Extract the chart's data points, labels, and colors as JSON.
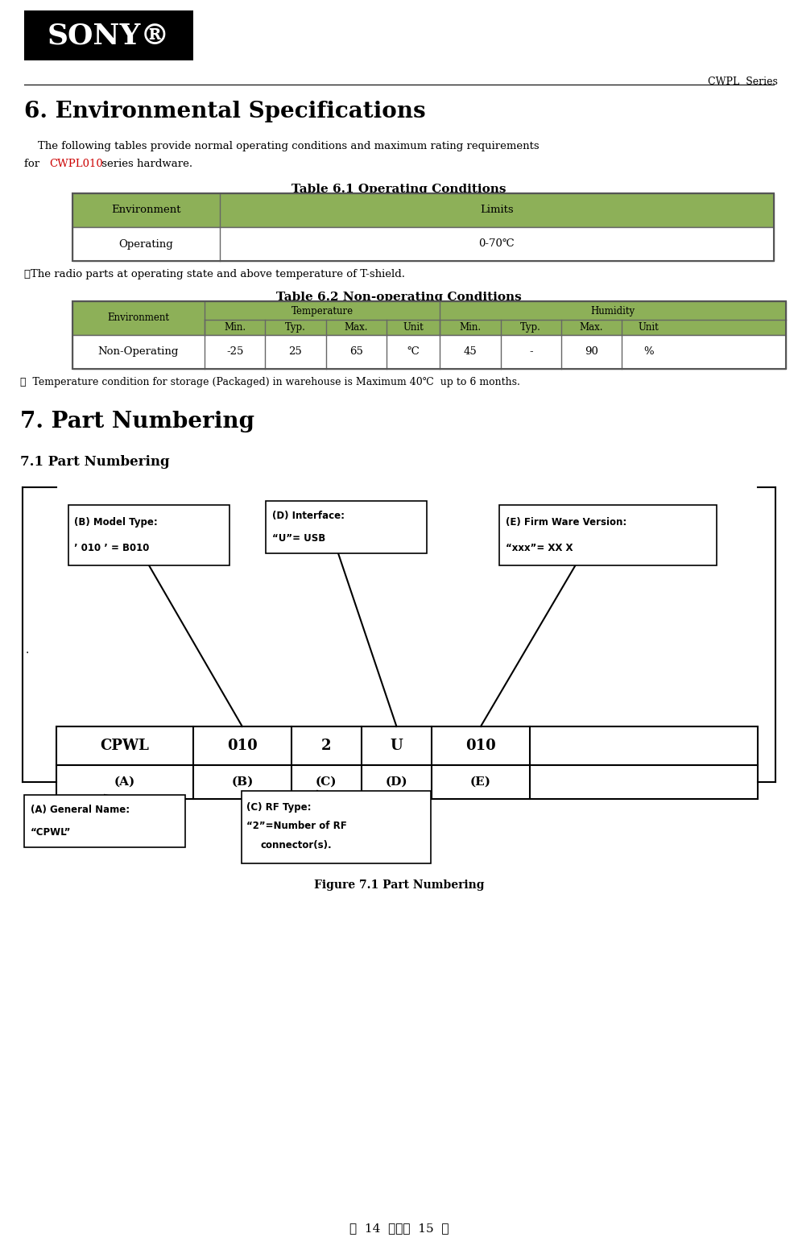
{
  "page_width": 9.91,
  "page_height": 15.57,
  "bg_color": "#ffffff",
  "header_text": "CWPL  Series",
  "section6_title": "6. Environmental Specifications",
  "cwpl010_color": "#cc0000",
  "table61_title": "Table 6.1 Operating Conditions",
  "table61_header_bg": "#8db058",
  "note1": "※The radio parts at operating state and above temperature of T-shield.",
  "table62_title": "Table 6.2 Non-operating Conditions",
  "table62_header_bg": "#8db058",
  "note2": "※  Temperature condition for storage (Packaged) in warehouse is Maximum 40℃  up to 6 months.",
  "section7_title": "7. Part Numbering",
  "section71_title": "7.1 Part Numbering",
  "fig71_title": "Figure 7.1 Part Numbering",
  "footer_text": "第  14  頁，共  15  頁"
}
